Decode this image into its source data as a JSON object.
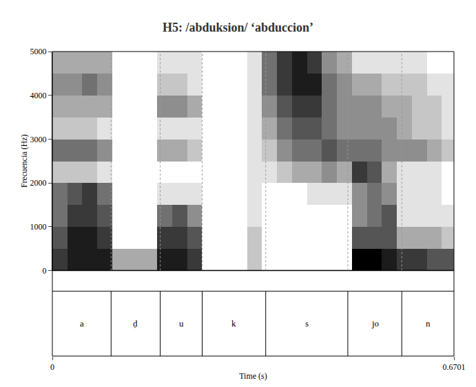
{
  "chart_data": {
    "type": "heatmap",
    "title": "H5: /abduksion/ ‘abduccion’",
    "xlabel": "Time (s)",
    "ylabel": "Frecuencia (Hz)",
    "xlim": [
      0,
      0.6701
    ],
    "xticks": [
      0,
      0.6701
    ],
    "ylim": [
      0,
      5000
    ],
    "yticks": [
      0,
      1000,
      2000,
      3000,
      4000,
      5000
    ],
    "color": "#000000",
    "zlim": [
      0,
      9
    ],
    "x": [
      0.0125,
      0.0375,
      0.0625,
      0.0875,
      0.1125,
      0.1375,
      0.1625,
      0.1875,
      0.2125,
      0.2375,
      0.2625,
      0.2875,
      0.3125,
      0.3375,
      0.3625,
      0.3875,
      0.4125,
      0.4375,
      0.4625,
      0.4875,
      0.5125,
      0.5375,
      0.5625,
      0.5875,
      0.6125,
      0.6375,
      0.6625
    ],
    "y": [
      250,
      750,
      1250,
      1750,
      2250,
      2750,
      3250,
      3750,
      4250,
      4750
    ],
    "z": [
      [
        7,
        8,
        8,
        8,
        3,
        3,
        3,
        8,
        8,
        7,
        0,
        0,
        0,
        2,
        0,
        0,
        0,
        0,
        0,
        0,
        9,
        9,
        8,
        7,
        7,
        6,
        6
      ],
      [
        6,
        8,
        8,
        7,
        0,
        0,
        0,
        7,
        7,
        6,
        0,
        0,
        0,
        2,
        0,
        0,
        0,
        0,
        0,
        0,
        6,
        6,
        6,
        3,
        3,
        3,
        2
      ],
      [
        5,
        7,
        7,
        6,
        0,
        0,
        0,
        5,
        6,
        4,
        0,
        0,
        0,
        1,
        0,
        0,
        0,
        0,
        0,
        0,
        4,
        5,
        6,
        1,
        1,
        1,
        1
      ],
      [
        5,
        6,
        7,
        5,
        0,
        0,
        0,
        1,
        1,
        1,
        0,
        0,
        0,
        1,
        0,
        0,
        0,
        1,
        1,
        1,
        4,
        5,
        4,
        1,
        1,
        1,
        0
      ],
      [
        2,
        2,
        2,
        1,
        0,
        0,
        0,
        0,
        0,
        0,
        0,
        0,
        0,
        1,
        1,
        2,
        3,
        3,
        4,
        3,
        7,
        6,
        3,
        1,
        1,
        1,
        0
      ],
      [
        5,
        5,
        5,
        4,
        0,
        0,
        0,
        3,
        3,
        2,
        0,
        0,
        0,
        1,
        2,
        4,
        5,
        5,
        6,
        5,
        5,
        5,
        4,
        4,
        4,
        3,
        2
      ],
      [
        2,
        2,
        2,
        1,
        0,
        0,
        0,
        1,
        1,
        1,
        0,
        0,
        0,
        1,
        3,
        5,
        6,
        6,
        5,
        4,
        4,
        4,
        4,
        3,
        2,
        2,
        1
      ],
      [
        3,
        3,
        3,
        3,
        0,
        0,
        0,
        4,
        4,
        3,
        0,
        0,
        0,
        1,
        4,
        6,
        7,
        7,
        5,
        4,
        4,
        4,
        3,
        3,
        2,
        2,
        1
      ],
      [
        4,
        4,
        5,
        4,
        0,
        0,
        0,
        2,
        2,
        1,
        0,
        0,
        0,
        1,
        5,
        7,
        8,
        8,
        5,
        4,
        3,
        3,
        2,
        2,
        2,
        1,
        1
      ],
      [
        3,
        3,
        3,
        3,
        0,
        0,
        0,
        1,
        1,
        1,
        0,
        0,
        0,
        1,
        5,
        7,
        8,
        7,
        4,
        3,
        1,
        1,
        1,
        1,
        1,
        0,
        0
      ]
    ],
    "segments": [
      {
        "label": "a",
        "start": 0,
        "end": 0.098
      },
      {
        "label": "ḍ",
        "start": 0.098,
        "end": 0.18
      },
      {
        "label": "u",
        "start": 0.18,
        "end": 0.25
      },
      {
        "label": "k",
        "start": 0.25,
        "end": 0.356
      },
      {
        "label": "s",
        "start": 0.356,
        "end": 0.493
      },
      {
        "label": "jo",
        "start": 0.493,
        "end": 0.583
      },
      {
        "label": "n",
        "start": 0.583,
        "end": 0.6701
      }
    ]
  }
}
